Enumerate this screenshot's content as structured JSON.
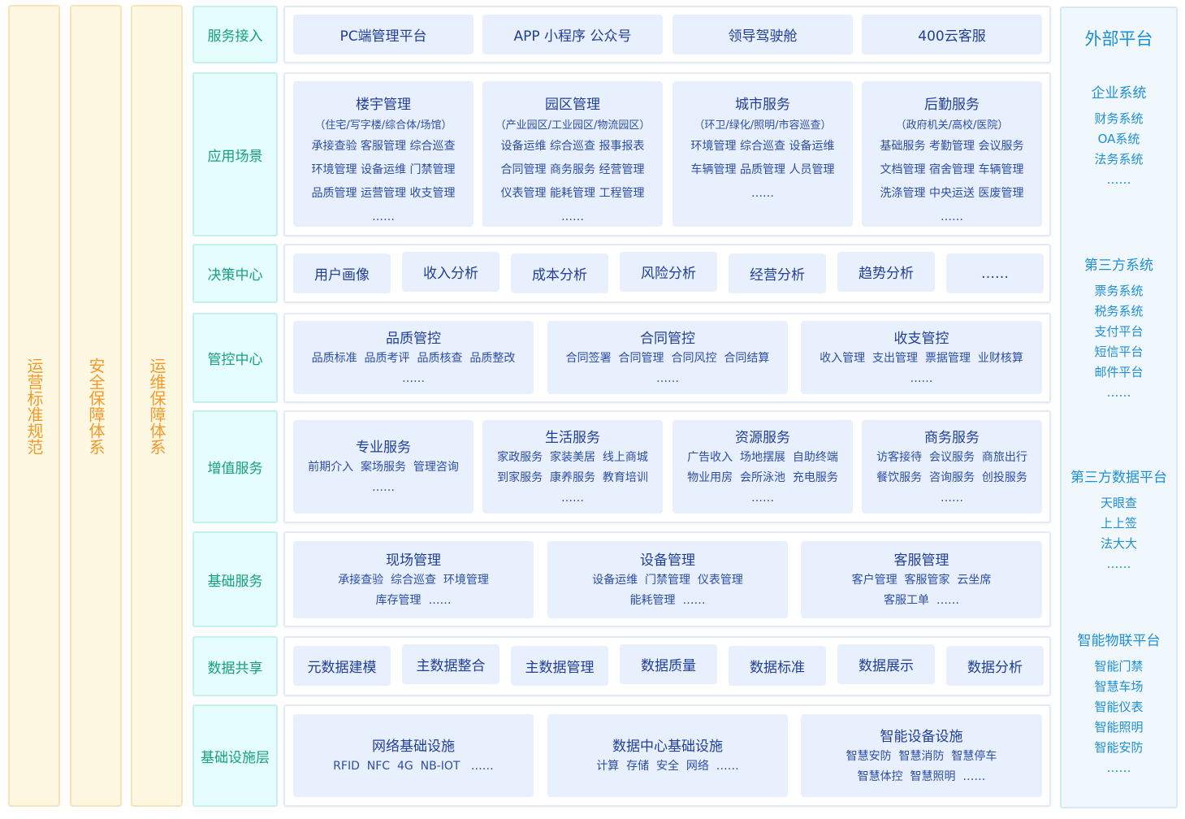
{
  "pillars": [
    "运营标准规范",
    "安全保障体系",
    "运维保障体系"
  ],
  "layers": [
    {
      "label": "服务接入",
      "cells": [
        {
          "title": "PC端管理平台"
        },
        {
          "title": "APP  小程序  公众号"
        },
        {
          "title": "领导驾驶舱"
        },
        {
          "title": "400云客服"
        }
      ]
    },
    {
      "label": "应用场景",
      "cells": [
        {
          "title": "楼宇管理",
          "sub": "（住宅/写字楼/综合体/场馆）",
          "items": [
            "承接查验  客服管理  综合巡查",
            "环境管理  设备运维  门禁管理",
            "品质管理  运营管理  收支管理",
            "……"
          ]
        },
        {
          "title": "园区管理",
          "sub": "（产业园区/工业园区/物流园区）",
          "items": [
            "设备运维  综合巡查  报事报表",
            "合同管理  商务服务  经营管理",
            "仪表管理  能耗管理  工程管理",
            "……"
          ]
        },
        {
          "title": "城市服务",
          "sub": "（环卫/绿化/照明/市容巡查）",
          "items": [
            "环境管理  综合巡查  设备运维",
            "车辆管理  品质管理  人员管理",
            "……"
          ]
        },
        {
          "title": "后勤服务",
          "sub": "（政府机关/高校/医院）",
          "items": [
            "基础服务  考勤管理  会议服务",
            "文档管理  宿舍管理  车辆管理",
            "洗涤管理  中央运送  医废管理",
            "……"
          ]
        }
      ]
    },
    {
      "label": "决策中心",
      "cells": [
        {
          "title": "用户画像"
        },
        {
          "title": "收入分析"
        },
        {
          "title": "成本分析"
        },
        {
          "title": "风险分析"
        },
        {
          "title": "经营分析"
        },
        {
          "title": "趋势分析"
        },
        {
          "title": "……"
        }
      ]
    },
    {
      "label": "管控中心",
      "cells": [
        {
          "title": "品质管控",
          "lines": [
            "品质标准  品质考评  品质核查  品质整改",
            "……"
          ]
        },
        {
          "title": "合同管控",
          "lines": [
            "合同签署  合同管理  合同风控  合同结算",
            "……"
          ]
        },
        {
          "title": "收支管控",
          "lines": [
            "收入管理  支出管理  票据管理  业财核算",
            "……"
          ]
        }
      ]
    },
    {
      "label": "增值服务",
      "cells": [
        {
          "title": "专业服务",
          "lines": [
            "前期介入  案场服务  管理咨询",
            "……"
          ]
        },
        {
          "title": "生活服务",
          "lines": [
            "家政服务  家装美居  线上商城",
            "到家服务  康养服务  教育培训",
            "……"
          ]
        },
        {
          "title": "资源服务",
          "lines": [
            "广告收入  场地摆展  自助终端",
            "物业用房  会所泳池  充电服务",
            "……"
          ]
        },
        {
          "title": "商务服务",
          "lines": [
            "访客接待  会议服务  商旅出行",
            "餐饮服务  咨询服务  创投服务",
            "……"
          ]
        }
      ]
    },
    {
      "label": "基础服务",
      "cells": [
        {
          "title": "现场管理",
          "lines": [
            "承接查验  综合巡查  环境管理",
            "库存管理  ……"
          ]
        },
        {
          "title": "设备管理",
          "lines": [
            "设备运维  门禁管理  仪表管理",
            "能耗管理  ……"
          ]
        },
        {
          "title": "客服管理",
          "lines": [
            "客户管理  客服管家  云坐席",
            "客服工单  ……"
          ]
        }
      ]
    },
    {
      "label": "数据共享",
      "cells": [
        {
          "title": "元数据建模"
        },
        {
          "title": "主数据整合"
        },
        {
          "title": "主数据管理"
        },
        {
          "title": "数据质量"
        },
        {
          "title": "数据标准"
        },
        {
          "title": "数据展示"
        },
        {
          "title": "数据分析"
        }
      ]
    },
    {
      "label": "基础设施层",
      "cells": [
        {
          "title": "网络基础设施",
          "lines": [
            "RFID  NFC  4G  NB-IOT   ……"
          ]
        },
        {
          "title": "数据中心基础设施",
          "lines": [
            "计算  存储  安全  网络  ……"
          ]
        },
        {
          "title": "智能设备设施",
          "lines": [
            "智慧安防  智慧消防  智慧停车",
            "智慧体控  智慧照明  ……"
          ]
        }
      ]
    }
  ],
  "external": {
    "title": "外部平台",
    "groups": [
      {
        "title": "企业系统",
        "items": [
          "财务系统",
          "OA系统",
          "法务系统",
          "……"
        ]
      },
      {
        "title": "第三方系统",
        "items": [
          "票务系统",
          "税务系统",
          "支付平台",
          "短信平台",
          "邮件平台",
          "……"
        ]
      },
      {
        "title": "第三方数据平台",
        "items": [
          "天眼查",
          "上上签",
          "法大大",
          "……"
        ]
      },
      {
        "title": "智能物联平台",
        "items": [
          "智能门禁",
          "智慧车场",
          "智能仪表",
          "智能照明",
          "智能安防",
          "……"
        ]
      }
    ]
  },
  "colors": {
    "pillar_text": "#f39a2b",
    "label_text": "#15a07f",
    "cell_bg": "#e8effd",
    "cell_text": "#203f96",
    "external_text": "#1f8fd6"
  }
}
